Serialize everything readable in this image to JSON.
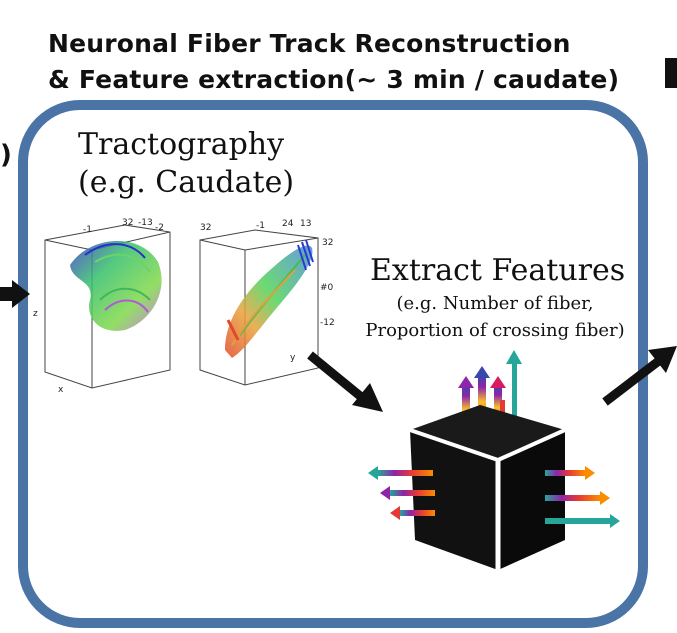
{
  "heading": {
    "line1": "Neuronal Fiber Track Reconstruction",
    "line2": "& Feature extraction(~ 3 min / caudate)"
  },
  "left_edge_fragment": ")",
  "tractography": {
    "title_line1": "Tractography",
    "title_line2": "(e.g. Caudate)",
    "volume1": {
      "top_ticks": [
        "-1",
        "32",
        "-13",
        "-2"
      ],
      "side_axis": "z",
      "bottom_axis": "x"
    },
    "volume2": {
      "top_ticks": [
        "32",
        "-1",
        "24",
        "13",
        "32"
      ],
      "side_ticks": [
        "#0",
        "-12"
      ],
      "bottom_axis": "y"
    }
  },
  "extract": {
    "title": "Extract Features",
    "subtitle_line1": "(e.g. Number of fiber,",
    "subtitle_line2": "Proportion of crossing fiber)"
  },
  "colors": {
    "frame_border": "#4a74a6",
    "arrow": "#111111",
    "box": "#111111"
  }
}
